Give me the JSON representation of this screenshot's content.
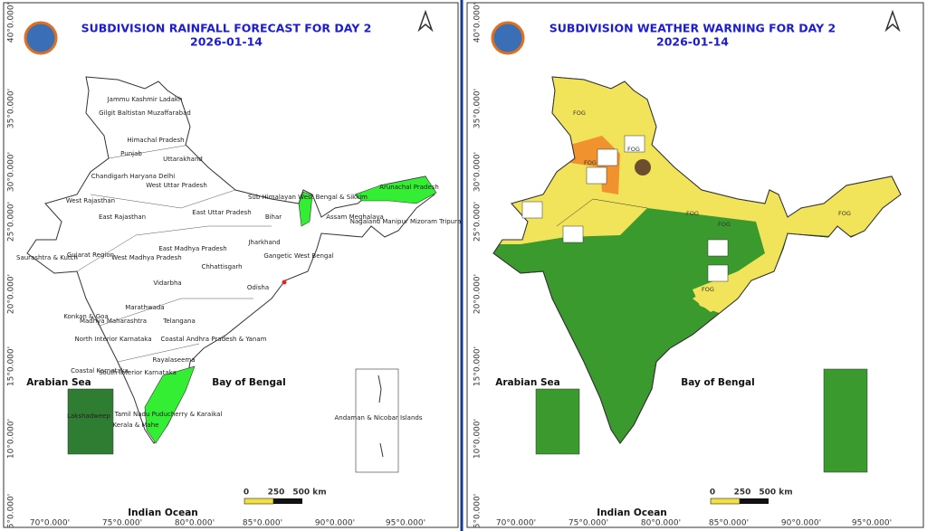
{
  "panels": [
    {
      "title": "SUBDIVISION RAINFALL FORECAST FOR DAY 2",
      "date": "2026-01-14",
      "region_labels": [
        "Jammu Kashmir Ladakh",
        "Gilgit Baltistan Muzaffarabad",
        "Himachal Pradesh",
        "Punjab",
        "Uttarakhand",
        "Chandigarh Haryana Delhi",
        "West Uttar Pradesh",
        "West Rajasthan",
        "East Rajasthan",
        "East Uttar Pradesh",
        "Bihar",
        "Sub Himalayan West Bengal & Sikkim",
        "Arunachal Pradesh",
        "Assam Meghalaya",
        "Nagaland Manipur Mizoram Tripura",
        "Jharkhand",
        "Gangetic West Bengal",
        "Saurashtra & Kutch",
        "Gujarat Region",
        "West Madhya Pradesh",
        "East Madhya Pradesh",
        "Chhattisgarh",
        "Odisha",
        "Vidarbha",
        "Konkan & Goa",
        "Marathwada",
        "Madhya Maharashtra",
        "Telangana",
        "North Interior Karnataka",
        "Coastal Andhra Pradesh & Yanam",
        "Rayalaseema",
        "Coastal Karnataka",
        "South Interior Karnataka",
        "Tamil Nadu Puducherry & Karaikal",
        "Kerala & Mahe",
        "Lakshadweep",
        "Andaman & Nicobar Islands"
      ],
      "seas": [
        "Arabian Sea",
        "Bay of Bengal",
        "Indian Ocean"
      ]
    },
    {
      "title": "SUBDIVISION WEATHER WARNING FOR DAY 2",
      "date": "2026-01-14",
      "fog_labels": [
        "FOG",
        "FOG",
        "FOG",
        "FOG",
        "FOG",
        "FOG",
        "FOG"
      ],
      "seas": [
        "Arabian Sea",
        "Bay of Bengal",
        "Indian Ocean"
      ]
    }
  ],
  "lat_labels": [
    "40°0.000'",
    "35°0.000'",
    "30°0.000'",
    "25°0.000'",
    "20°0.000'",
    "15°0.000'",
    "10°0.000'",
    "5°0.000'"
  ],
  "lon_labels": [
    "70°0.000'",
    "75°0.000'",
    "80°0.000'",
    "85°0.000'",
    "90°0.000'",
    "95°0.000'"
  ],
  "scale_labels": [
    "0",
    "250",
    "500 km"
  ]
}
